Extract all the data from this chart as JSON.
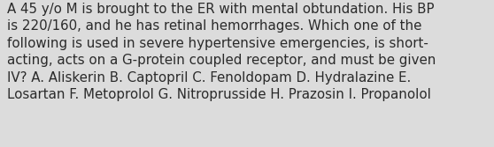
{
  "text": "A 45 y/o M is brought to the ER with mental obtundation. His BP\nis 220/160, and he has retinal hemorrhages. Which one of the\nfollowing is used in severe hypertensive emergencies, is short-\nacting, acts on a G-protein coupled receptor, and must be given\nIV? A. Aliskerin B. Captopril C. Fenoldopam D. Hydralazine E.\nLosartan F. Metoprolol G. Nitroprusside H. Prazosin I. Propanolol",
  "background_color": "#dcdcdc",
  "text_color": "#2a2a2a",
  "font_size": 10.8,
  "fig_width": 5.58,
  "fig_height": 1.67,
  "dpi": 100
}
